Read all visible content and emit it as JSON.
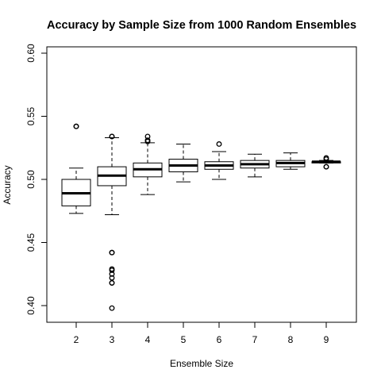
{
  "chart_data": {
    "type": "box",
    "title": "Accuracy by Sample Size from 1000 Random Ensembles",
    "xlabel": "Ensemble Size",
    "ylabel": "Accuracy",
    "ylim": [
      0.39,
      0.605
    ],
    "yticks": [
      "0.40",
      "0.45",
      "0.50",
      "0.55",
      "0.60"
    ],
    "grid": false,
    "legend": "none",
    "categories": [
      "2",
      "3",
      "4",
      "5",
      "6",
      "7",
      "8",
      "9"
    ],
    "boxes": [
      {
        "category": "2",
        "whisker_low": 0.473,
        "q1": 0.479,
        "median": 0.489,
        "q3": 0.5,
        "whisker_high": 0.509,
        "outliers": [
          0.542,
          0.542
        ]
      },
      {
        "category": "3",
        "whisker_low": 0.472,
        "q1": 0.495,
        "median": 0.503,
        "q3": 0.51,
        "whisker_high": 0.533,
        "outliers": [
          0.534,
          0.534,
          0.442,
          0.442,
          0.429,
          0.428,
          0.425,
          0.422,
          0.418,
          0.418,
          0.398
        ]
      },
      {
        "category": "4",
        "whisker_low": 0.488,
        "q1": 0.502,
        "median": 0.508,
        "q3": 0.513,
        "whisker_high": 0.529,
        "outliers": [
          0.534,
          0.531,
          0.53
        ]
      },
      {
        "category": "5",
        "whisker_low": 0.498,
        "q1": 0.506,
        "median": 0.511,
        "q3": 0.516,
        "whisker_high": 0.528,
        "outliers": []
      },
      {
        "category": "6",
        "whisker_low": 0.5,
        "q1": 0.508,
        "median": 0.511,
        "q3": 0.514,
        "whisker_high": 0.522,
        "outliers": [
          0.528
        ]
      },
      {
        "category": "7",
        "whisker_low": 0.502,
        "q1": 0.509,
        "median": 0.512,
        "q3": 0.515,
        "whisker_high": 0.52,
        "outliers": []
      },
      {
        "category": "8",
        "whisker_low": 0.508,
        "q1": 0.51,
        "median": 0.513,
        "q3": 0.515,
        "whisker_high": 0.521,
        "outliers": []
      },
      {
        "category": "9",
        "whisker_low": 0.513,
        "q1": 0.513,
        "median": 0.514,
        "q3": 0.514,
        "whisker_high": 0.515,
        "outliers": [
          0.517,
          0.516,
          0.51,
          0.51
        ]
      }
    ]
  }
}
